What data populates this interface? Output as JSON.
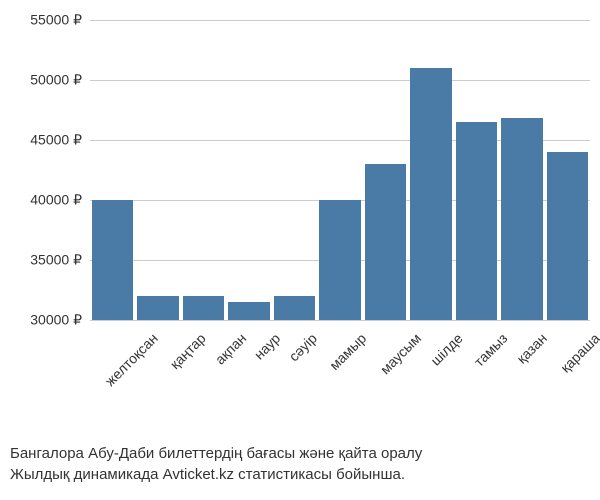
{
  "chart": {
    "type": "bar",
    "bar_color": "#4a7ba6",
    "background_color": "#ffffff",
    "grid_color": "#cccccc",
    "currency_symbol": "₽",
    "ylim": [
      30000,
      55000
    ],
    "ytick_step": 5000,
    "yticks": [
      {
        "value": 30000,
        "label": "30000 ₽"
      },
      {
        "value": 35000,
        "label": "35000 ₽"
      },
      {
        "value": 40000,
        "label": "40000 ₽"
      },
      {
        "value": 45000,
        "label": "45000 ₽"
      },
      {
        "value": 50000,
        "label": "50000 ₽"
      },
      {
        "value": 55000,
        "label": "55000 ₽"
      }
    ],
    "categories": [
      "желтоқсан",
      "қаңтар",
      "ақпан",
      "наур",
      "сәуір",
      "мамыр",
      "маусым",
      "шілде",
      "тамыз",
      "қазан",
      "қараша"
    ],
    "values": [
      40000,
      32000,
      32000,
      31500,
      32000,
      40000,
      43000,
      51000,
      46500,
      46800,
      44000
    ],
    "label_fontsize": 14,
    "bar_gap": 4
  },
  "caption": {
    "line1": "Бангалора Абу-Даби билеттердің бағасы және қайта оралу",
    "line2": "Жылдық динамикада Avticket.kz статистикасы бойынша."
  }
}
